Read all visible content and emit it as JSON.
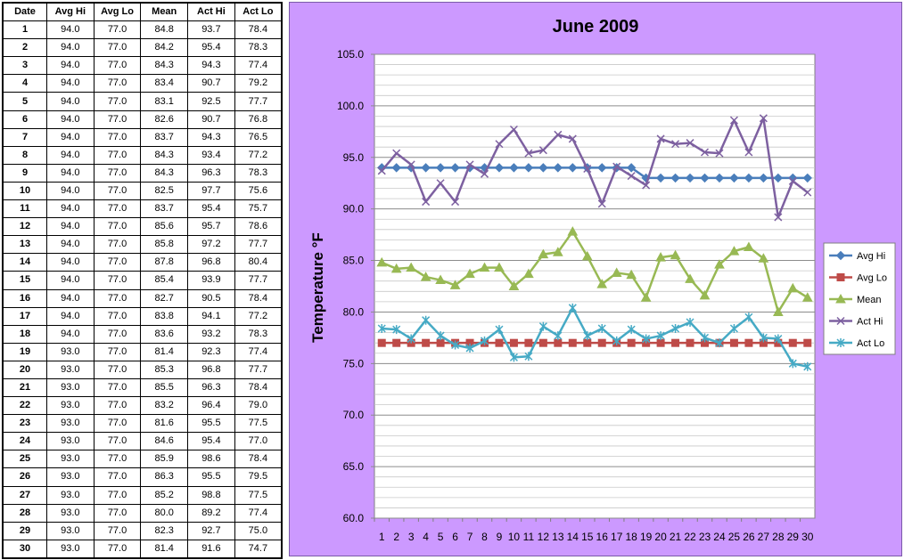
{
  "table": {
    "headers": [
      "Date",
      "Avg Hi",
      "Avg Lo",
      "Mean",
      "Act Hi",
      "Act Lo"
    ],
    "rows": [
      [
        "1",
        "94.0",
        "77.0",
        "84.8",
        "93.7",
        "78.4"
      ],
      [
        "2",
        "94.0",
        "77.0",
        "84.2",
        "95.4",
        "78.3"
      ],
      [
        "3",
        "94.0",
        "77.0",
        "84.3",
        "94.3",
        "77.4"
      ],
      [
        "4",
        "94.0",
        "77.0",
        "83.4",
        "90.7",
        "79.2"
      ],
      [
        "5",
        "94.0",
        "77.0",
        "83.1",
        "92.5",
        "77.7"
      ],
      [
        "6",
        "94.0",
        "77.0",
        "82.6",
        "90.7",
        "76.8"
      ],
      [
        "7",
        "94.0",
        "77.0",
        "83.7",
        "94.3",
        "76.5"
      ],
      [
        "8",
        "94.0",
        "77.0",
        "84.3",
        "93.4",
        "77.2"
      ],
      [
        "9",
        "94.0",
        "77.0",
        "84.3",
        "96.3",
        "78.3"
      ],
      [
        "10",
        "94.0",
        "77.0",
        "82.5",
        "97.7",
        "75.6"
      ],
      [
        "11",
        "94.0",
        "77.0",
        "83.7",
        "95.4",
        "75.7"
      ],
      [
        "12",
        "94.0",
        "77.0",
        "85.6",
        "95.7",
        "78.6"
      ],
      [
        "13",
        "94.0",
        "77.0",
        "85.8",
        "97.2",
        "77.7"
      ],
      [
        "14",
        "94.0",
        "77.0",
        "87.8",
        "96.8",
        "80.4"
      ],
      [
        "15",
        "94.0",
        "77.0",
        "85.4",
        "93.9",
        "77.7"
      ],
      [
        "16",
        "94.0",
        "77.0",
        "82.7",
        "90.5",
        "78.4"
      ],
      [
        "17",
        "94.0",
        "77.0",
        "83.8",
        "94.1",
        "77.2"
      ],
      [
        "18",
        "94.0",
        "77.0",
        "83.6",
        "93.2",
        "78.3"
      ],
      [
        "19",
        "93.0",
        "77.0",
        "81.4",
        "92.3",
        "77.4"
      ],
      [
        "20",
        "93.0",
        "77.0",
        "85.3",
        "96.8",
        "77.7"
      ],
      [
        "21",
        "93.0",
        "77.0",
        "85.5",
        "96.3",
        "78.4"
      ],
      [
        "22",
        "93.0",
        "77.0",
        "83.2",
        "96.4",
        "79.0"
      ],
      [
        "23",
        "93.0",
        "77.0",
        "81.6",
        "95.5",
        "77.5"
      ],
      [
        "24",
        "93.0",
        "77.0",
        "84.6",
        "95.4",
        "77.0"
      ],
      [
        "25",
        "93.0",
        "77.0",
        "85.9",
        "98.6",
        "78.4"
      ],
      [
        "26",
        "93.0",
        "77.0",
        "86.3",
        "95.5",
        "79.5"
      ],
      [
        "27",
        "93.0",
        "77.0",
        "85.2",
        "98.8",
        "77.5"
      ],
      [
        "28",
        "93.0",
        "77.0",
        "80.0",
        "89.2",
        "77.4"
      ],
      [
        "29",
        "93.0",
        "77.0",
        "82.3",
        "92.7",
        "75.0"
      ],
      [
        "30",
        "93.0",
        "77.0",
        "81.4",
        "91.6",
        "74.7"
      ]
    ]
  },
  "chart_data": {
    "type": "line",
    "title": "June 2009",
    "xlabel": "",
    "ylabel": "Temperature °F",
    "x": [
      1,
      2,
      3,
      4,
      5,
      6,
      7,
      8,
      9,
      10,
      11,
      12,
      13,
      14,
      15,
      16,
      17,
      18,
      19,
      20,
      21,
      22,
      23,
      24,
      25,
      26,
      27,
      28,
      29,
      30
    ],
    "x_tick_labels": [
      "1",
      "2",
      "3",
      "4",
      "5",
      "6",
      "7",
      "8",
      "9",
      "10",
      "11",
      "12",
      "13",
      "14",
      "15",
      "16",
      "17",
      "18",
      "19",
      "20",
      "21",
      "22",
      "23",
      "24",
      "25",
      "26",
      "27",
      "28",
      "29",
      "30"
    ],
    "ylim": [
      60,
      105
    ],
    "y_ticks": [
      60,
      65,
      70,
      75,
      80,
      85,
      90,
      95,
      100,
      105
    ],
    "y_tick_labels": [
      "60.0",
      "65.0",
      "70.0",
      "75.0",
      "80.0",
      "85.0",
      "90.0",
      "95.0",
      "100.0",
      "105.0"
    ],
    "grid": true,
    "legend_position": "right",
    "series": [
      {
        "name": "Avg Hi",
        "color": "#4a7ebb",
        "marker": "diamond",
        "values": [
          94,
          94,
          94,
          94,
          94,
          94,
          94,
          94,
          94,
          94,
          94,
          94,
          94,
          94,
          94,
          94,
          94,
          94,
          93,
          93,
          93,
          93,
          93,
          93,
          93,
          93,
          93,
          93,
          93,
          93
        ]
      },
      {
        "name": "Avg Lo",
        "color": "#be4b48",
        "marker": "square",
        "values": [
          77,
          77,
          77,
          77,
          77,
          77,
          77,
          77,
          77,
          77,
          77,
          77,
          77,
          77,
          77,
          77,
          77,
          77,
          77,
          77,
          77,
          77,
          77,
          77,
          77,
          77,
          77,
          77,
          77,
          77
        ]
      },
      {
        "name": "Mean",
        "color": "#98b954",
        "marker": "triangle",
        "values": [
          84.8,
          84.2,
          84.3,
          83.4,
          83.1,
          82.6,
          83.7,
          84.3,
          84.3,
          82.5,
          83.7,
          85.6,
          85.8,
          87.8,
          85.4,
          82.7,
          83.8,
          83.6,
          81.4,
          85.3,
          85.5,
          83.2,
          81.6,
          84.6,
          85.9,
          86.3,
          85.2,
          80.0,
          82.3,
          81.4
        ]
      },
      {
        "name": "Act Hi",
        "color": "#7d60a0",
        "marker": "x",
        "values": [
          93.7,
          95.4,
          94.3,
          90.7,
          92.5,
          90.7,
          94.3,
          93.4,
          96.3,
          97.7,
          95.4,
          95.7,
          97.2,
          96.8,
          93.9,
          90.5,
          94.1,
          93.2,
          92.3,
          96.8,
          96.3,
          96.4,
          95.5,
          95.4,
          98.6,
          95.5,
          98.8,
          89.2,
          92.7,
          91.6
        ]
      },
      {
        "name": "Act Lo",
        "color": "#46aac5",
        "marker": "star",
        "values": [
          78.4,
          78.3,
          77.4,
          79.2,
          77.7,
          76.8,
          76.5,
          77.2,
          78.3,
          75.6,
          75.7,
          78.6,
          77.7,
          80.4,
          77.7,
          78.4,
          77.2,
          78.3,
          77.4,
          77.7,
          78.4,
          79.0,
          77.5,
          77.0,
          78.4,
          79.5,
          77.5,
          77.4,
          75.0,
          74.7
        ]
      }
    ]
  }
}
